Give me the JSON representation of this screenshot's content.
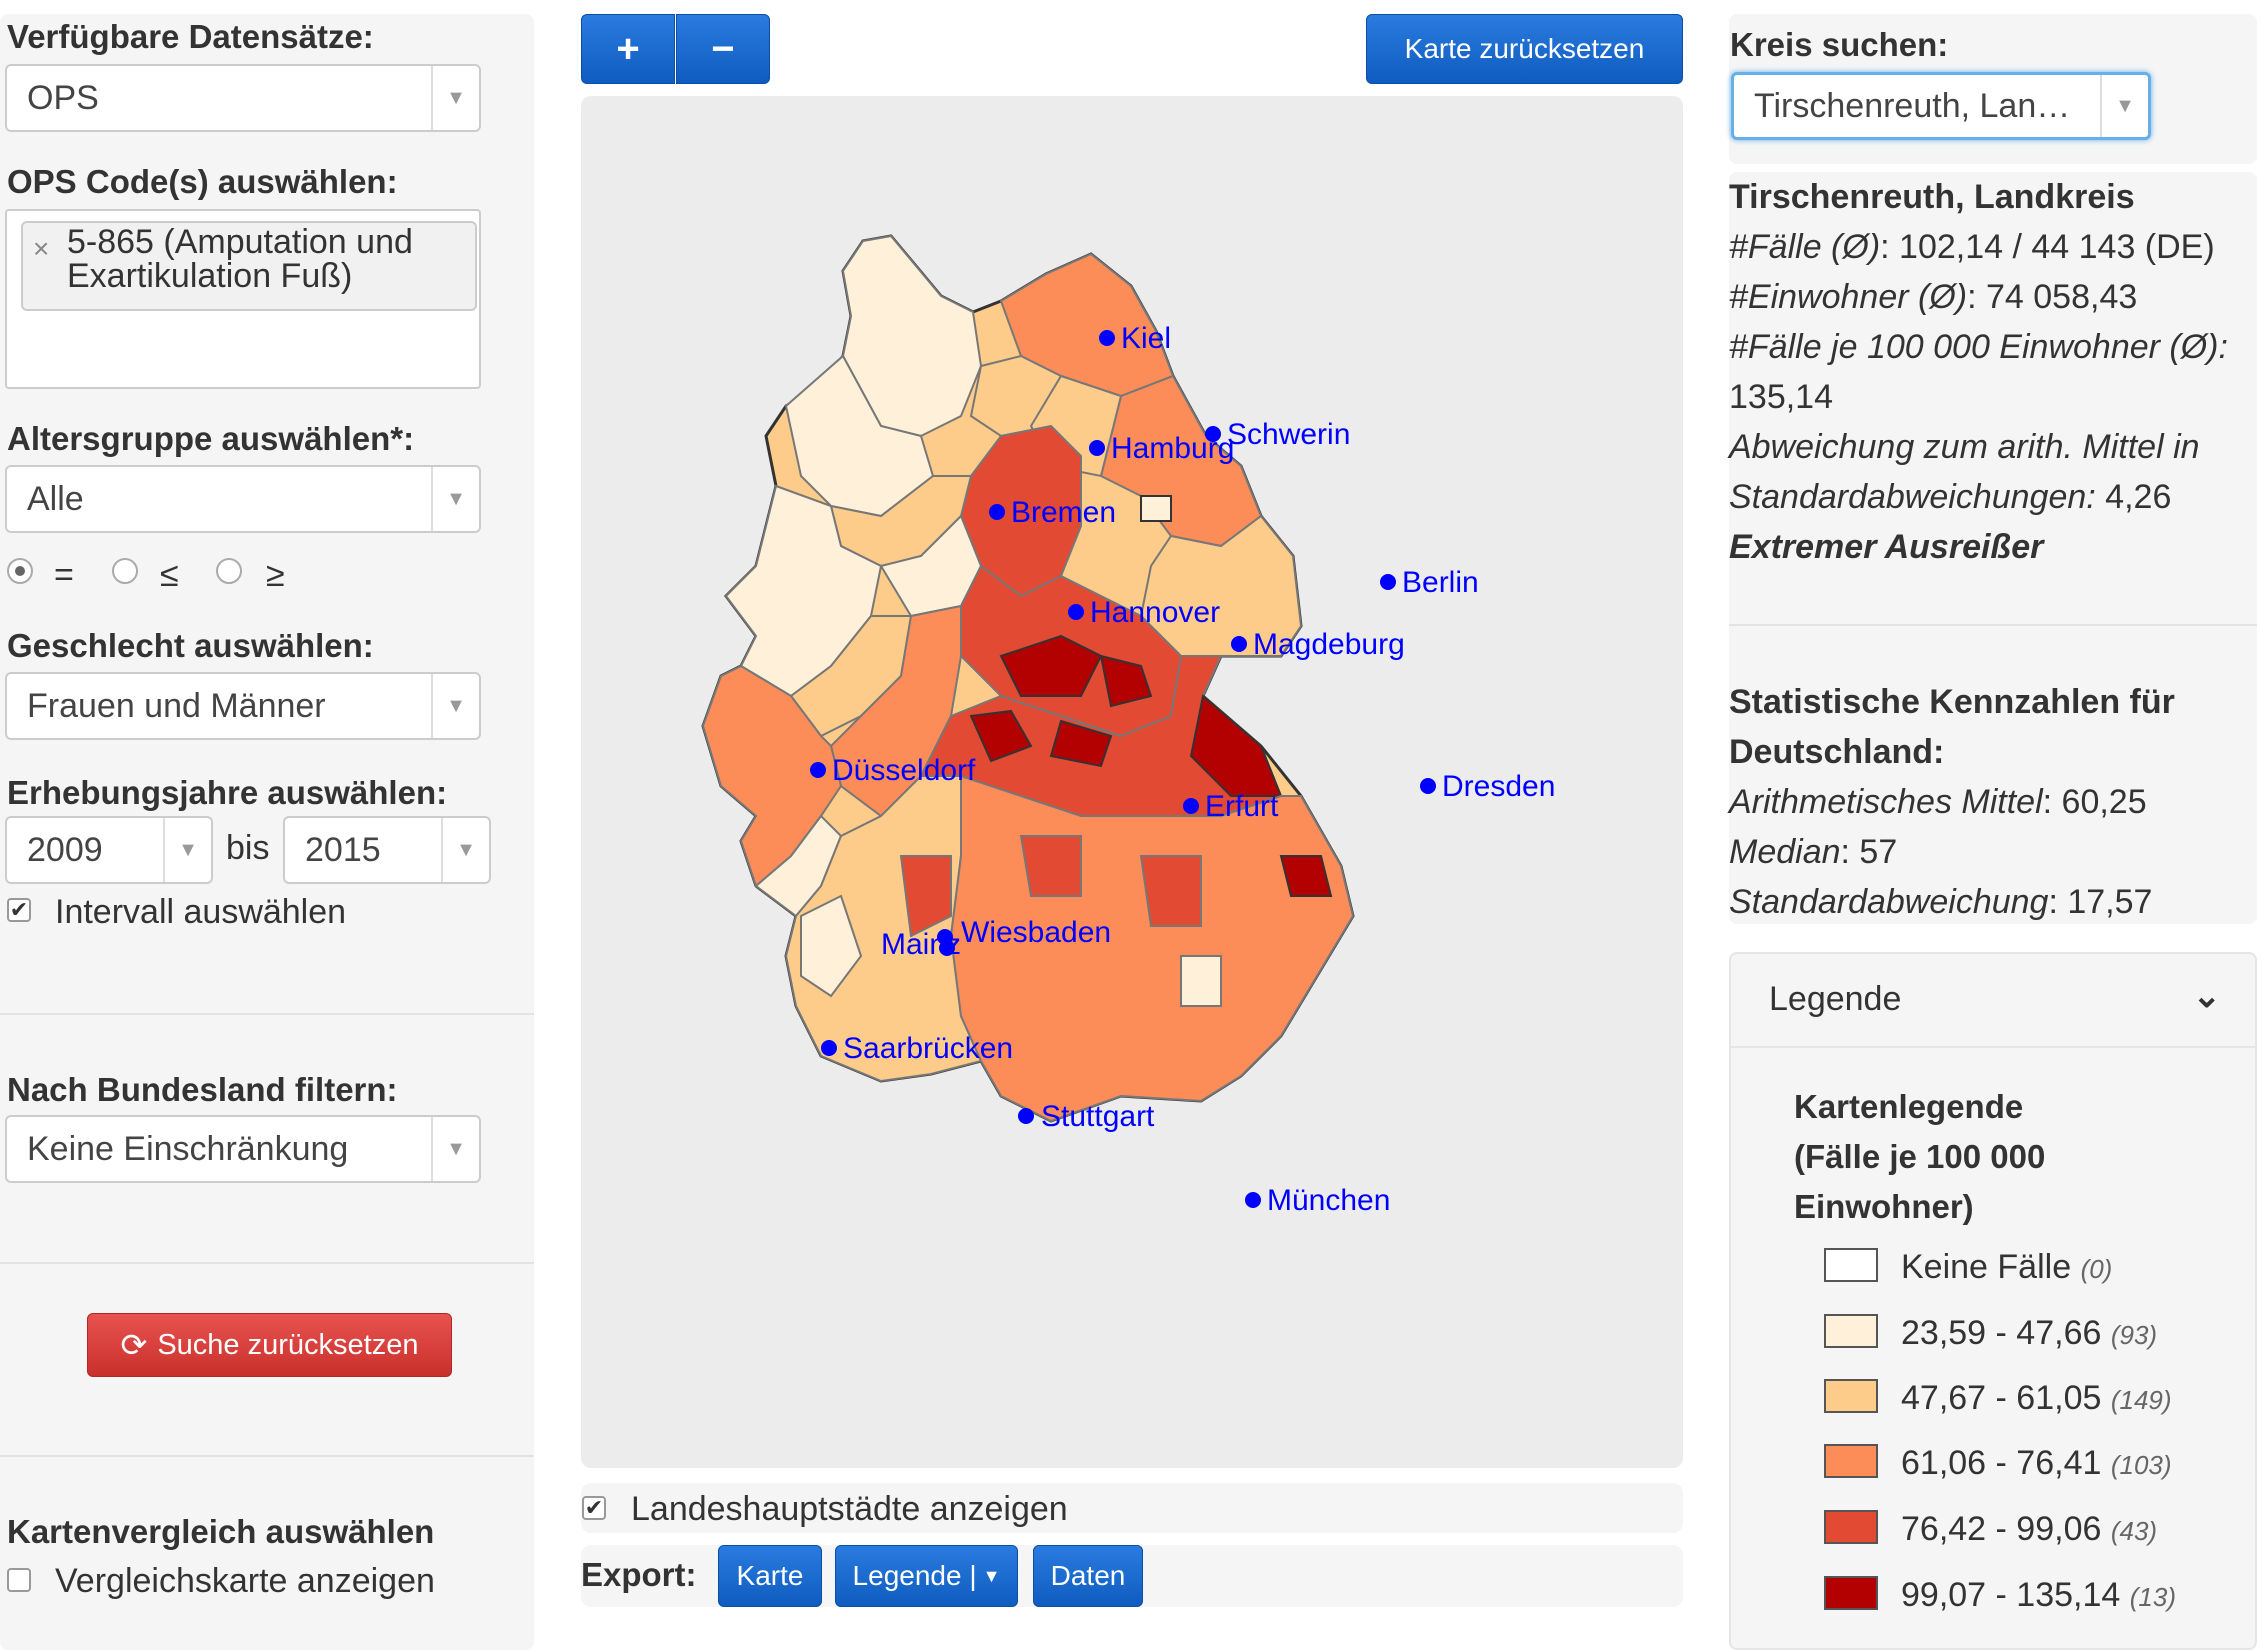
{
  "left": {
    "datasets_label": "Verfügbare Datensätze:",
    "datasets_value": "OPS",
    "ops_label": "OPS Code(s) auswählen:",
    "ops_tag_line1": "5-865 (Amputation und",
    "ops_tag_line2": "Exartikulation Fuß)",
    "age_label": "Altersgruppe auswählen*:",
    "age_value": "Alle",
    "radio_eq": "=",
    "radio_le": "≤",
    "radio_ge": "≥",
    "sex_label": "Geschlecht auswählen:",
    "sex_value": "Frauen und Männer",
    "years_label": "Erhebungsjahre auswählen:",
    "year_from": "2009",
    "year_bis": "bis",
    "year_to": "2015",
    "interval_label": "Intervall auswählen",
    "state_label": "Nach Bundesland filtern:",
    "state_value": "Keine Einschränkung",
    "reset_search": "Suche zurücksetzen",
    "compare_label": "Kartenvergleich auswählen",
    "compare_checkbox": "Vergleichskarte anzeigen"
  },
  "map": {
    "zoom_in": "+",
    "zoom_out": "−",
    "reset_map": "Karte zurücksetzen",
    "capitals_checkbox": "Landeshauptstädte anzeigen",
    "cities": [
      "Kiel",
      "Hamburg",
      "Schwerin",
      "Bremen",
      "Berlin",
      "Hannover",
      "Magdeburg",
      "Düsseldorf",
      "Dresden",
      "Erfurt",
      "Mainz",
      "Wiesbaden",
      "Saarbrücken",
      "Stuttgart",
      "München"
    ]
  },
  "export": {
    "label": "Export:",
    "karte": "Karte",
    "legende": "Legende |",
    "daten": "Daten"
  },
  "right": {
    "search_label": "Kreis suchen:",
    "search_value": "Tirschenreuth, Lan…",
    "district_title": "Tirschenreuth, Landkreis",
    "faelle_key": "#Fälle (Ø)",
    "faelle_val": ": 102,14 / 44 143 (DE)",
    "einwohner_key": "#Einwohner (Ø)",
    "einwohner_val": ": 74 058,43",
    "rate_key": "#Fälle je 100 000 Einwohner (Ø):",
    "rate_val": "135,14",
    "deviation_line1": "Abweichung zum arith. Mittel in",
    "deviation_line2_key": "Standardabweichungen:",
    "deviation_line2_val": " 4,26",
    "outlier": "Extremer Ausreißer",
    "stats_title_line1": "Statistische Kennzahlen für",
    "stats_title_line2": "Deutschland:",
    "mean_key": "Arithmetisches Mittel",
    "mean_val": ": 60,25",
    "median_key": "Median",
    "median_val": ": 57",
    "sd_key": "Standardabweichung",
    "sd_val": ": 17,57"
  },
  "legend": {
    "header": "Legende",
    "title_line1": "Kartenlegende",
    "title_line2": "(Fälle je 100 000",
    "title_line3": "Einwohner)",
    "items": [
      {
        "label": "Keine Fälle",
        "count": "(0)",
        "color": "#ffffff"
      },
      {
        "label": "23,59 - 47,66",
        "count": "(93)",
        "color": "#fef0d9"
      },
      {
        "label": "47,67 - 61,05",
        "count": "(149)",
        "color": "#fdcc8a"
      },
      {
        "label": "61,06 - 76,41",
        "count": "(103)",
        "color": "#fc8d59"
      },
      {
        "label": "76,42 - 99,06",
        "count": "(43)",
        "color": "#e34a33"
      },
      {
        "label": "99,07 - 135,14",
        "count": "(13)",
        "color": "#b30000"
      }
    ]
  }
}
